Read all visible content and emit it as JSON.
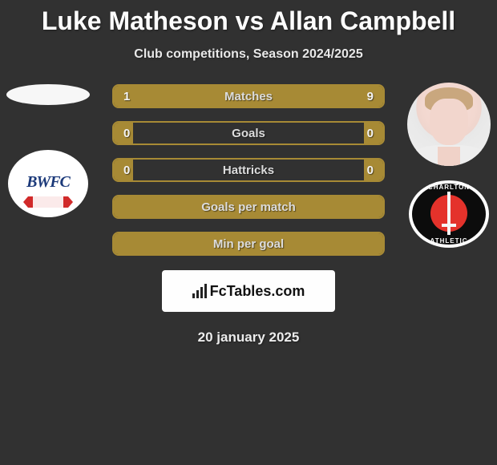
{
  "title": "Luke Matheson vs Allan Campbell",
  "subtitle": "Club competitions, Season 2024/2025",
  "date": "20 january 2025",
  "colors": {
    "background": "#313131",
    "bar_border": "#a78a35",
    "bar_fill": "#a78a35",
    "title_color": "#fdfdfd",
    "text_color": "#ececec"
  },
  "left_club": {
    "code": "BWFC",
    "text_color": "#1c3a7a"
  },
  "right_club": {
    "top_text": "CHARLTON",
    "bottom_text": "ATHLETIC",
    "accent": "#e4322b"
  },
  "stats": [
    {
      "label": "Matches",
      "left_value": "1",
      "right_value": "9",
      "left_fill_pct": 10,
      "right_fill_pct": 90
    },
    {
      "label": "Goals",
      "left_value": "0",
      "right_value": "0",
      "left_fill_pct": 7,
      "right_fill_pct": 7
    },
    {
      "label": "Hattricks",
      "left_value": "0",
      "right_value": "0",
      "left_fill_pct": 7,
      "right_fill_pct": 7
    },
    {
      "label": "Goals per match",
      "left_value": "",
      "right_value": "",
      "left_fill_pct": 100,
      "right_fill_pct": 0
    },
    {
      "label": "Min per goal",
      "left_value": "",
      "right_value": "",
      "left_fill_pct": 100,
      "right_fill_pct": 0
    }
  ],
  "fctables_label": "FcTables.com"
}
